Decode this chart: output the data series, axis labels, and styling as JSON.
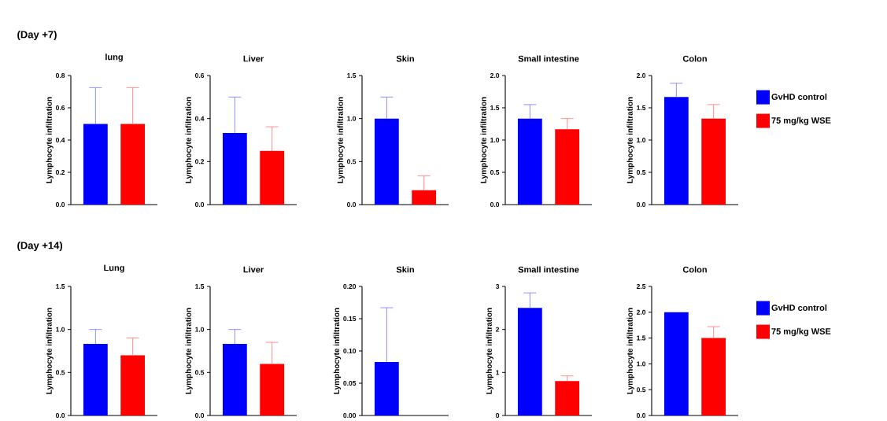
{
  "chart_data": [
    {
      "type": "bar",
      "title": "lung",
      "ylabel": "Lymphocyte infiltration",
      "annotations": [
        "(Day +7)"
      ],
      "categories": [
        null
      ],
      "ylim": [
        0,
        0.8
      ],
      "yticks": [
        {
          "value": 0,
          "label": "0.0"
        },
        0.2,
        0.4,
        0.6,
        0.8
      ],
      "series": [
        {
          "color": "#0000ff",
          "values": [
            0.5
          ],
          "errors": [
            [
              0.5,
              0.725
            ]
          ]
        },
        {
          "color": "#ff0000",
          "values": [
            0.5
          ],
          "errors": [
            [
              0.5,
              0.725
            ]
          ]
        }
      ]
    },
    {
      "type": "bar",
      "title": "Liver",
      "ylabel": "Lymphocyte infiltration",
      "categories": [
        null
      ],
      "ylim": [
        0,
        0.6
      ],
      "yticks": [
        {
          "value": 0,
          "label": "0.0"
        },
        0.2,
        0.4,
        0.6
      ],
      "series": [
        {
          "color": "#0000ff",
          "values": [
            0.333
          ],
          "errors": [
            [
              0.333,
              0.5
            ]
          ]
        },
        {
          "color": "#ff0000",
          "values": [
            0.25
          ],
          "errors": [
            [
              0.25,
              0.362
            ]
          ]
        }
      ]
    },
    {
      "type": "bar",
      "title": "Skin",
      "ylabel": "Lymphocyte infiltration",
      "categories": [
        null
      ],
      "ylim": [
        0,
        1.5
      ],
      "yticks": [
        {
          "value": 0,
          "label": "0.0"
        },
        0.5,
        {
          "value": 1,
          "label": "1.0"
        },
        1.5
      ],
      "series": [
        {
          "color": "#0000ff",
          "values": [
            1.0
          ],
          "errors": [
            [
              1.0,
              1.25
            ]
          ]
        },
        {
          "color": "#ff0000",
          "values": [
            0.167
          ],
          "errors": [
            [
              0.167,
              0.333
            ]
          ]
        }
      ]
    },
    {
      "type": "bar",
      "title": "Small intestine",
      "ylabel": "Lymphocyte infiltration",
      "categories": [
        null
      ],
      "ylim": [
        0,
        2
      ],
      "yticks": [
        {
          "value": 0,
          "label": "0.0"
        },
        0.5,
        {
          "value": 1,
          "label": "1.0"
        },
        1.5,
        {
          "value": 2,
          "label": "2.0"
        }
      ],
      "series": [
        {
          "color": "#0000ff",
          "values": [
            1.333
          ],
          "errors": [
            [
              1.333,
              1.55
            ]
          ]
        },
        {
          "color": "#ff0000",
          "values": [
            1.167
          ],
          "errors": [
            [
              1.167,
              1.333
            ]
          ]
        }
      ]
    },
    {
      "type": "bar",
      "title": "Colon",
      "ylabel": "Lymphocyte infiltration",
      "categories": [
        null
      ],
      "ylim": [
        0,
        2
      ],
      "yticks": [
        {
          "value": 0,
          "label": "0.0"
        },
        0.5,
        {
          "value": 1,
          "label": "1.0"
        },
        1.5,
        {
          "value": 2,
          "label": "2.0"
        }
      ],
      "legend": "right",
      "series": [
        {
          "name": "GvHD control",
          "color": "#0000ff",
          "values": [
            1.667
          ],
          "errors": [
            [
              1.667,
              1.88
            ]
          ]
        },
        {
          "name": "75 mg/kg WSE",
          "color": "#ff0000",
          "values": [
            1.333
          ],
          "errors": [
            [
              1.333,
              1.55
            ]
          ]
        }
      ]
    },
    {
      "type": "bar",
      "title": "Lung",
      "ylabel": "Lymphocyte infiltration",
      "annotations": [
        "(Day +14)"
      ],
      "categories": [
        null
      ],
      "ylim": [
        0,
        1.5
      ],
      "yticks": [
        {
          "value": 0,
          "label": "0.0"
        },
        0.5,
        {
          "value": 1,
          "label": "1.0"
        },
        1.5
      ],
      "series": [
        {
          "color": "#0000ff",
          "values": [
            0.833
          ],
          "errors": [
            [
              0.833,
              1.0
            ]
          ]
        },
        {
          "color": "#ff0000",
          "values": [
            0.7
          ],
          "errors": [
            [
              0.7,
              0.9
            ]
          ]
        }
      ]
    },
    {
      "type": "bar",
      "title": "Liver",
      "ylabel": "Lymphocyte infiltration",
      "categories": [
        null
      ],
      "ylim": [
        0,
        1.5
      ],
      "yticks": [
        {
          "value": 0,
          "label": "0.0"
        },
        0.5,
        {
          "value": 1,
          "label": "1.0"
        },
        1.5
      ],
      "series": [
        {
          "color": "#0000ff",
          "values": [
            0.833
          ],
          "errors": [
            [
              0.833,
              1.0
            ]
          ]
        },
        {
          "color": "#ff0000",
          "values": [
            0.6
          ],
          "errors": [
            [
              0.6,
              0.85
            ]
          ]
        }
      ]
    },
    {
      "type": "bar",
      "title": "Skin",
      "ylabel": "Lymphocyte infiltration",
      "categories": [
        null
      ],
      "ylim": [
        0,
        0.2
      ],
      "yticks": [
        {
          "value": 0,
          "label": "0.00"
        },
        0.05,
        {
          "value": 0.1,
          "label": "0.10"
        },
        0.15,
        {
          "value": 0.2,
          "label": "0.20"
        }
      ],
      "series": [
        {
          "color": "#0000ff",
          "values": [
            0.083
          ],
          "errors": [
            [
              0.083,
              0.167
            ]
          ]
        },
        {
          "color": "#ff0000",
          "values": [
            0
          ],
          "errors": [
            null
          ]
        }
      ]
    },
    {
      "type": "bar",
      "title": "Small intestine",
      "ylabel": "Lymphocyte infiltration",
      "categories": [
        null
      ],
      "ylim": [
        0,
        3
      ],
      "yticks": [
        0,
        1,
        2,
        3
      ],
      "series": [
        {
          "color": "#0000ff",
          "values": [
            2.5
          ],
          "errors": [
            [
              2.5,
              2.85
            ]
          ]
        },
        {
          "color": "#ff0000",
          "values": [
            0.8
          ],
          "errors": [
            [
              0.8,
              0.92
            ]
          ]
        }
      ]
    },
    {
      "type": "bar",
      "title": "Colon",
      "ylabel": "Lymphocyte infiltration",
      "categories": [
        null
      ],
      "ylim": [
        0,
        2.5
      ],
      "yticks": [
        {
          "value": 0,
          "label": "0.0"
        },
        0.5,
        {
          "value": 1,
          "label": "1.0"
        },
        1.5,
        {
          "value": 2,
          "label": "2.0"
        },
        2.5
      ],
      "legend": "right",
      "series": [
        {
          "name": "GvHD control",
          "color": "#0000ff",
          "values": [
            2.0
          ],
          "errors": [
            null
          ]
        },
        {
          "name": "75 mg/kg WSE",
          "color": "#ff0000",
          "values": [
            1.5
          ],
          "errors": [
            [
              1.5,
              1.72
            ]
          ]
        }
      ]
    }
  ]
}
